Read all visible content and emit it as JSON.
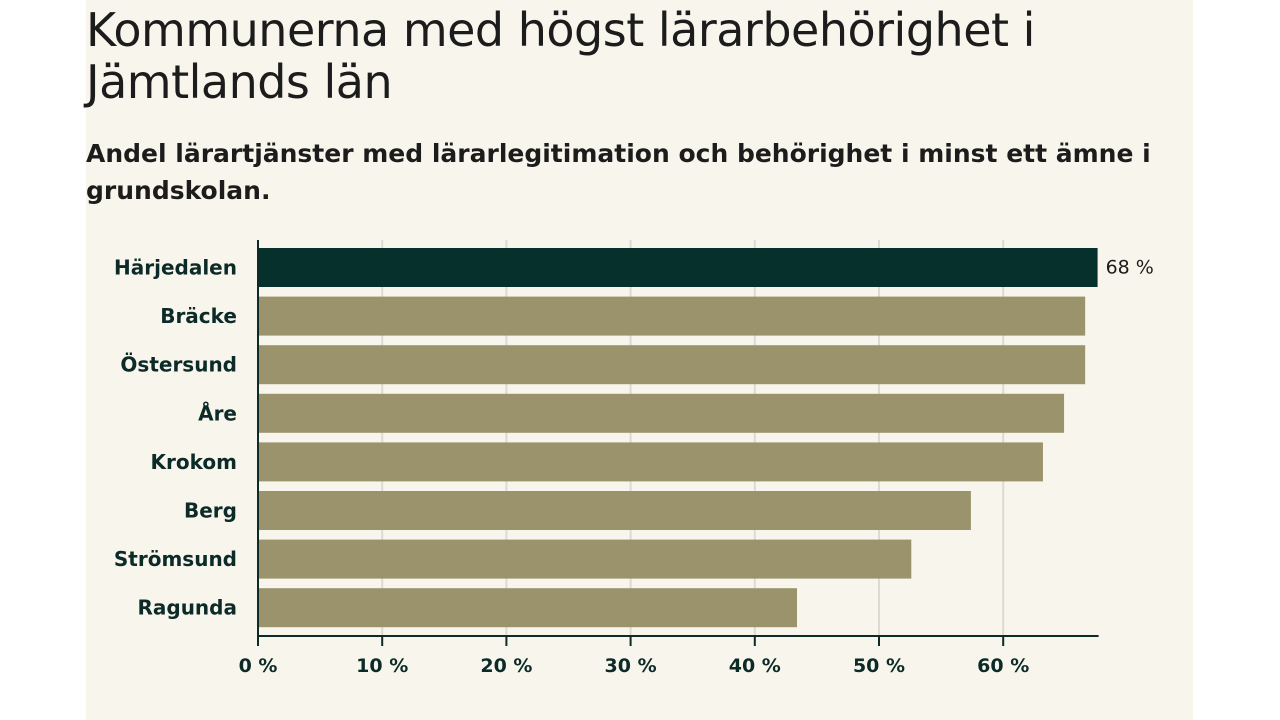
{
  "chart_data": {
    "type": "bar",
    "orientation": "horizontal",
    "title": "Kommunerna med högst lärarbehörighet i Jämtlands län",
    "subtitle": "Andel lärartjänster med lärarlegitimation och behörighet i minst ett ämne i grundskolan.",
    "categories": [
      "Härjedalen",
      "Bräcke",
      "Östersund",
      "Åre",
      "Krokom",
      "Berg",
      "Strömsund",
      "Ragunda"
    ],
    "values": [
      67.6,
      66.6,
      66.6,
      64.9,
      63.2,
      57.4,
      52.6,
      43.4
    ],
    "highlight_index": 0,
    "data_labels": [
      "68 %",
      "",
      "",
      "",
      "",
      "",
      "",
      ""
    ],
    "xlim": [
      0,
      70
    ],
    "ticks": [
      0,
      10,
      20,
      30,
      40,
      50,
      60
    ],
    "tick_labels": [
      "0 %",
      "10 %",
      "20 %",
      "30 %",
      "40 %",
      "50 %",
      "60 %"
    ],
    "grid": true,
    "colors": {
      "highlight": "#05302c",
      "bar": "#9a936c",
      "grid": "#dcdad2",
      "axis": "#0b2a28"
    }
  }
}
